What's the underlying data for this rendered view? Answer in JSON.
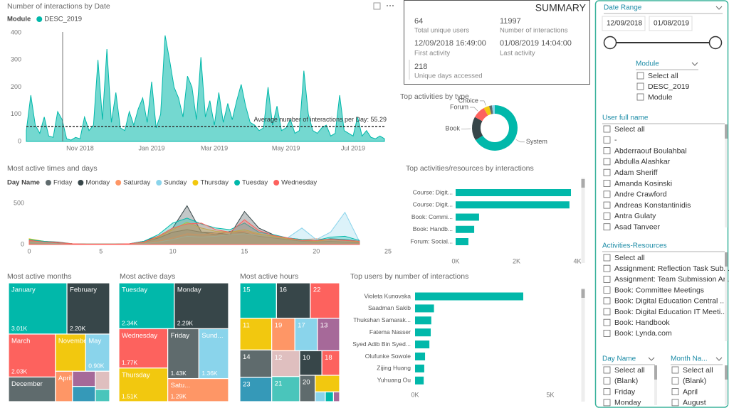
{
  "chart_data": [
    {
      "type": "area",
      "title": "Number of interactions by Date",
      "legend_title": "Module",
      "categories": [
        null,
        null,
        null,
        null,
        null,
        null,
        null,
        null,
        null,
        null,
        null,
        null,
        "Nov 2018",
        null,
        null,
        null,
        null,
        null,
        null,
        null,
        null,
        null,
        null,
        null,
        null,
        null,
        null,
        null,
        "Jan 2019",
        null,
        null,
        null,
        null,
        null,
        null,
        null,
        null,
        null,
        null,
        null,
        null,
        null,
        "Mar 2019",
        null,
        null,
        null,
        null,
        null,
        null,
        null,
        null,
        null,
        null,
        null,
        null,
        null,
        null,
        null,
        "May 2019",
        null,
        null,
        null,
        null,
        null,
        null,
        null,
        null,
        null,
        null,
        null,
        null,
        null,
        null,
        "Jul 2019",
        null,
        null,
        null,
        null,
        null,
        null,
        null
      ],
      "series": [
        {
          "name": "DESC_2019",
          "color": "#01b8aa",
          "values": [
            40,
            170,
            60,
            30,
            90,
            20,
            15,
            110,
            80,
            10,
            5,
            15,
            10,
            90,
            40,
            60,
            300,
            80,
            340,
            70,
            180,
            50,
            40,
            110,
            60,
            120,
            160,
            70,
            220,
            50,
            100,
            390,
            300,
            200,
            160,
            90,
            240,
            200,
            80,
            310,
            90,
            150,
            60,
            180,
            70,
            140,
            80,
            150,
            210,
            130,
            70,
            60,
            40,
            50,
            200,
            60,
            130,
            40,
            50,
            80,
            30,
            40,
            260,
            100,
            40,
            30,
            50,
            60,
            20,
            30,
            170,
            40,
            30,
            20,
            90,
            20,
            40,
            15,
            10,
            20,
            10
          ]
        }
      ],
      "ylim": [
        0,
        420
      ],
      "yticks": [
        0,
        100,
        200,
        300,
        400
      ],
      "average": 55.29,
      "annotation": "Average number of interactions per Day: 55.29"
    },
    {
      "type": "donut",
      "title": "Top activities by type",
      "categories": [
        "System",
        "Book",
        "Forum",
        "Choice",
        null,
        null
      ],
      "values": [
        66,
        17,
        9,
        4,
        2,
        2
      ],
      "colors": [
        "#01b8aa",
        "#374649",
        "#fd625e",
        "#f2c80f",
        "#5f6b6d",
        "#8ad4eb"
      ]
    },
    {
      "type": "area",
      "title": "Most active times and days",
      "legend_title": "Day Name",
      "x": [
        0,
        1,
        2,
        3,
        4,
        5,
        6,
        7,
        8,
        9,
        10,
        11,
        12,
        13,
        14,
        15,
        16,
        17,
        18,
        19,
        20,
        21,
        22,
        23
      ],
      "xlim": [
        0,
        25
      ],
      "xticks": [
        0,
        5,
        10,
        15,
        20,
        25
      ],
      "ylim": [
        0,
        600
      ],
      "yticks": [
        0,
        500
      ],
      "series": [
        {
          "name": "Friday",
          "color": "#5f6b6d",
          "values": [
            60,
            40,
            30,
            10,
            5,
            5,
            5,
            10,
            30,
            80,
            150,
            180,
            150,
            120,
            160,
            140,
            100,
            80,
            60,
            40,
            30,
            40,
            30,
            20
          ]
        },
        {
          "name": "Monday",
          "color": "#374649",
          "values": [
            50,
            30,
            20,
            10,
            5,
            5,
            5,
            10,
            40,
            100,
            200,
            470,
            150,
            140,
            120,
            400,
            200,
            120,
            80,
            60,
            50,
            70,
            60,
            40
          ]
        },
        {
          "name": "Saturday",
          "color": "#fe9666",
          "values": [
            40,
            30,
            20,
            10,
            5,
            5,
            5,
            5,
            20,
            40,
            80,
            130,
            120,
            140,
            150,
            160,
            120,
            110,
            80,
            60,
            70,
            60,
            50,
            30
          ]
        },
        {
          "name": "Sunday",
          "color": "#8ad4eb",
          "values": [
            30,
            20,
            10,
            5,
            5,
            5,
            5,
            5,
            10,
            30,
            60,
            100,
            90,
            100,
            120,
            130,
            110,
            120,
            80,
            200,
            60,
            150,
            390,
            40
          ]
        },
        {
          "name": "Thursday",
          "color": "#f2c80f",
          "values": [
            70,
            40,
            20,
            10,
            5,
            5,
            5,
            10,
            30,
            90,
            180,
            270,
            200,
            160,
            150,
            180,
            130,
            100,
            70,
            50,
            40,
            60,
            50,
            30
          ]
        },
        {
          "name": "Tuesday",
          "color": "#01b8aa",
          "values": [
            60,
            40,
            20,
            10,
            5,
            5,
            5,
            10,
            40,
            120,
            260,
            320,
            250,
            200,
            180,
            260,
            150,
            120,
            80,
            60,
            50,
            90,
            100,
            50
          ]
        },
        {
          "name": "Wednesday",
          "color": "#fd625e",
          "values": [
            50,
            30,
            20,
            10,
            5,
            5,
            5,
            10,
            30,
            100,
            200,
            250,
            260,
            180,
            150,
            300,
            170,
            110,
            80,
            50,
            50,
            60,
            50,
            40
          ]
        }
      ]
    },
    {
      "type": "bar",
      "orientation": "horizontal",
      "title": "Top activities/resources by interactions",
      "categories": [
        "Course: Digit...",
        "Course: Digit...",
        "Book: Commi...",
        "Book: Handb...",
        "Forum: Social..."
      ],
      "values": [
        3790,
        3740,
        770,
        610,
        420
      ],
      "color": "#01b8aa",
      "xlim": [
        0,
        4000
      ],
      "xticks": [
        {
          "value": 0,
          "label": "0K"
        },
        {
          "value": 2000,
          "label": "2K"
        },
        {
          "value": 4000,
          "label": "4K"
        }
      ]
    },
    {
      "type": "bar",
      "orientation": "horizontal",
      "title": "Top users by number of interactions",
      "categories": [
        "Violeta Kunovska",
        "Saadman Sakib",
        "Thukshan Samarak...",
        "Fatema Nasser",
        "Syed Adib Bin Syed...",
        "Olufunke Sowole",
        "Zijing Huang",
        "Yuhuang Ou"
      ],
      "values": [
        4000,
        700,
        600,
        580,
        530,
        370,
        340,
        320
      ],
      "color": "#01b8aa",
      "xlim": [
        0,
        5000
      ],
      "xticks": [
        {
          "value": 0,
          "label": "0K"
        },
        {
          "value": 5000,
          "label": "5K"
        }
      ]
    },
    {
      "type": "treemap",
      "title": "Most active months",
      "categories": [
        "January",
        "February",
        "March",
        "December",
        "November",
        "May",
        "April",
        null,
        null,
        null,
        null
      ],
      "values": [
        3010,
        2200,
        2030,
        1160,
        1130,
        900,
        520,
        350,
        350,
        260,
        175
      ],
      "value_labels": [
        "3.01K",
        "2.20K",
        "2.03K",
        null,
        null,
        "0.90K",
        null,
        null,
        null,
        null,
        null
      ],
      "colors": [
        "#01b8aa",
        "#374649",
        "#fd625e",
        "#5f6b6d",
        "#f2c80f",
        "#8ad4eb",
        "#fe9666",
        "#a66999",
        "#3599b8",
        "#dfbfbf",
        "#4ac5bb"
      ]
    },
    {
      "type": "treemap",
      "title": "Most active days",
      "categories": [
        "Tuesday",
        "Monday",
        "Wednesday",
        "Thursday",
        "Friday",
        "Sund...",
        "Satu..."
      ],
      "values": [
        2340,
        2290,
        1770,
        1510,
        1430,
        1360,
        1290
      ],
      "value_labels": [
        "2.34K",
        "2.29K",
        "1.77K",
        "1.51K",
        "1.43K",
        "1.36K",
        "1.29K"
      ],
      "colors": [
        "#01b8aa",
        "#374649",
        "#fd625e",
        "#f2c80f",
        "#5f6b6d",
        "#8ad4eb",
        "#fe9666"
      ]
    },
    {
      "type": "treemap",
      "title": "Most active hours",
      "categories": [
        "15",
        "16",
        "22",
        "11",
        "14",
        "23",
        "19",
        "17",
        "13",
        "12",
        "21",
        "10",
        "18",
        "20",
        null,
        null,
        null,
        null
      ],
      "values": [
        1310,
        1210,
        1050,
        1020,
        880,
        780,
        760,
        740,
        730,
        730,
        710,
        550,
        440,
        410,
        410,
        100,
        80,
        60
      ],
      "colors": [
        "#01b8aa",
        "#374649",
        "#fd625e",
        "#f2c80f",
        "#5f6b6d",
        "#3599b8",
        "#fe9666",
        "#8ad4eb",
        "#a66999",
        "#dfbfbf",
        "#4ac5bb",
        "#374649",
        "#fd625e",
        "#5f6b6d",
        "#f2c80f",
        "#8ad4eb",
        "#01b8aa",
        "#a66999"
      ]
    }
  ],
  "summary": {
    "title": "SUMMARY",
    "items": [
      {
        "value": 64,
        "label": "Total unique users"
      },
      {
        "value": 11997,
        "label": "Number of interactions"
      },
      {
        "value": "12/09/2018 16:49:00",
        "label": "First activity"
      },
      {
        "value": "01/08/2019 14:04:00",
        "label": "Last activity"
      },
      {
        "value": 218,
        "label": "Unique days accessed"
      }
    ]
  },
  "slicers": {
    "date_range": {
      "title": "Date Range",
      "start": "12/09/2018",
      "end": "01/08/2019"
    },
    "module": {
      "title": "Module",
      "items": [
        "Select all",
        "DESC_2019",
        "Module"
      ]
    },
    "user": {
      "title": "User full name",
      "items": [
        "Select all",
        "-",
        "Abderraouf Boulahbal",
        "Abdulla Alashkar",
        "Adam Sheriff",
        "Amanda Kosinski",
        "Andre Crawford",
        "Andreas Konstantinidis",
        "Antra Gulaty",
        "Asad Tanveer"
      ]
    },
    "activities": {
      "title": "Activities-Resources",
      "items": [
        "Select all",
        "Assignment: Reflection Task Sub...",
        "Assignment: Team Submission Ar...",
        "Book: Committee Meetings",
        "Book: Digital Education Central ...",
        "Book: Digital Education IT Meeti...",
        "Book: Handbook",
        "Book: Lynda.com"
      ]
    },
    "day": {
      "title": "Day Name",
      "items": [
        "Select all",
        "(Blank)",
        "Friday",
        "Monday"
      ]
    },
    "month": {
      "title": "Month Na...",
      "items": [
        "Select all",
        "(Blank)",
        "April",
        "August"
      ]
    }
  }
}
